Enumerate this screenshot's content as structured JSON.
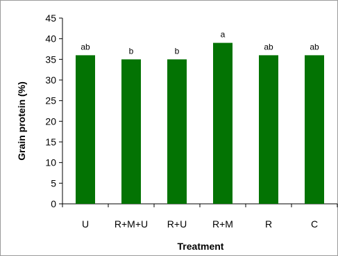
{
  "chart_data": {
    "type": "bar",
    "title": "",
    "xlabel": "Treatment",
    "ylabel": "Grain protein (%)",
    "categories": [
      "U",
      "R+M+U",
      "R+U",
      "R+M",
      "R",
      "C"
    ],
    "values": [
      36,
      35,
      35,
      39,
      36,
      36
    ],
    "data_labels": [
      "ab",
      "b",
      "b",
      "a",
      "ab",
      "ab"
    ],
    "ylim": [
      0,
      45
    ],
    "yticks": [
      0,
      5,
      10,
      15,
      20,
      25,
      30,
      35,
      40,
      45
    ],
    "grid": false,
    "legend": "none",
    "bar_color": "#037303"
  }
}
